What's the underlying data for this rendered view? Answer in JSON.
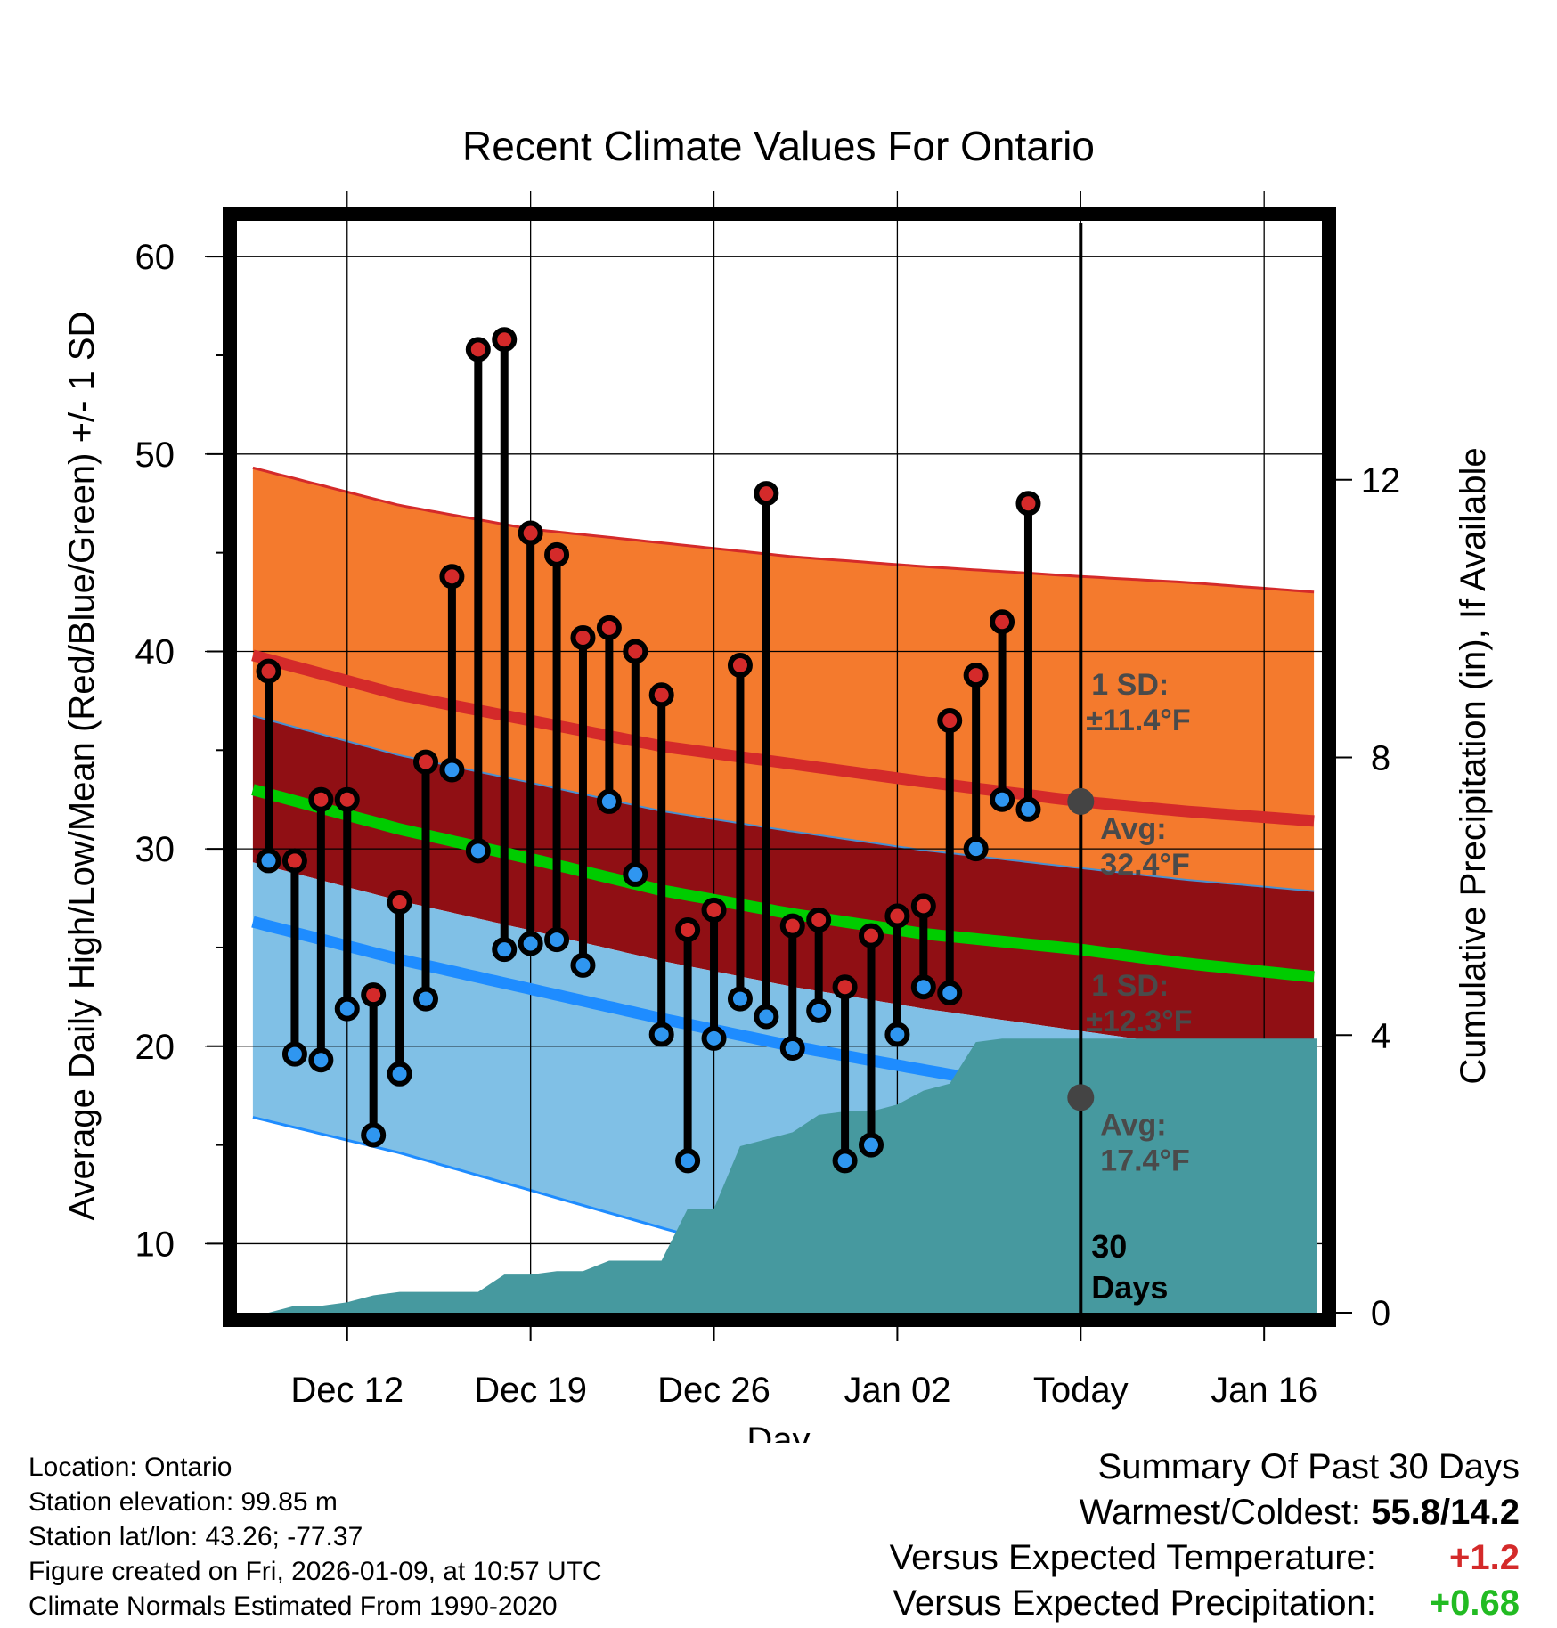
{
  "chart_data": {
    "type": "line",
    "title": "Recent Climate Values For Ontario",
    "xlabel": "Day",
    "ylabel": "Average Daily High/Low/Mean (Red/Blue/Green) +/- 1 SD",
    "y2label": "Cumulative Precipitation (in), If Available",
    "ylim": [
      6.5,
      61
    ],
    "y_ticks": [
      "60",
      "50",
      "40",
      "30",
      "20",
      "10"
    ],
    "y2lim": [
      0,
      15.5
    ],
    "y2_ticks": [
      "12",
      "8",
      "4",
      "0"
    ],
    "xlim": [
      -0.8,
      40
    ],
    "x_ticks": [
      {
        "day": 3,
        "label": "Dec 12"
      },
      {
        "day": 10,
        "label": "Dec 19"
      },
      {
        "day": 17,
        "label": "Dec 26"
      },
      {
        "day": 24,
        "label": "Jan 02"
      },
      {
        "day": 31,
        "label": "Today"
      },
      {
        "day": 38,
        "label": "Jan 16"
      }
    ],
    "normals": {
      "days": [
        -0.6,
        5,
        10,
        15,
        20,
        25,
        31,
        35,
        40
      ],
      "high_mean": [
        39.8,
        37.8,
        36.5,
        35.2,
        34.3,
        33.4,
        32.4,
        31.9,
        31.4
      ],
      "high_upper": [
        49.3,
        47.4,
        46.2,
        45.5,
        44.8,
        44.3,
        43.8,
        43.5,
        43.0
      ],
      "mean": [
        33.0,
        31.0,
        29.5,
        27.9,
        26.7,
        25.7,
        24.9,
        24.2,
        23.5
      ],
      "low_mean": [
        26.3,
        24.4,
        22.9,
        21.4,
        20.0,
        18.8,
        17.4,
        16.6,
        15.8
      ],
      "low_lower": [
        16.4,
        14.6,
        12.7,
        10.8,
        9.0,
        7.4,
        5.3,
        4.3,
        3.3
      ]
    },
    "daily_series": [
      {
        "name": "High",
        "color": "#d42a2a",
        "days": [
          0,
          1,
          2,
          3,
          4,
          5,
          6,
          7,
          8,
          9,
          10,
          11,
          12,
          13,
          14,
          15,
          16,
          17,
          18,
          19,
          20,
          21,
          22,
          23,
          24,
          25,
          26,
          27,
          28,
          29
        ],
        "values": [
          39.0,
          29.4,
          32.5,
          32.5,
          22.6,
          27.3,
          34.4,
          43.8,
          55.3,
          55.8,
          46.0,
          44.9,
          40.7,
          41.2,
          40.0,
          37.8,
          25.9,
          26.9,
          39.3,
          48.0,
          26.1,
          26.4,
          23.0,
          25.6,
          26.6,
          27.1,
          36.5,
          38.8,
          41.5,
          47.5
        ]
      },
      {
        "name": "Low",
        "color": "#2f96f0",
        "days": [
          0,
          1,
          2,
          3,
          4,
          5,
          6,
          7,
          8,
          9,
          10,
          11,
          12,
          13,
          14,
          15,
          16,
          17,
          18,
          19,
          20,
          21,
          22,
          23,
          24,
          25,
          26,
          27,
          28,
          29
        ],
        "values": [
          29.4,
          19.6,
          19.3,
          21.9,
          15.5,
          18.6,
          22.4,
          34.0,
          29.9,
          24.9,
          25.2,
          25.4,
          24.1,
          32.4,
          28.7,
          20.6,
          14.2,
          20.4,
          22.4,
          21.5,
          19.9,
          21.8,
          14.2,
          15.0,
          20.6,
          23.0,
          22.7,
          30.0,
          32.5,
          32.0
        ]
      }
    ],
    "cumulative_precip": {
      "days": [
        0,
        1,
        2,
        3,
        4,
        5,
        6,
        7,
        8,
        9,
        10,
        11,
        12,
        13,
        14,
        15,
        16,
        17,
        18,
        19,
        20,
        21,
        22,
        23,
        24,
        25,
        26,
        27,
        28,
        29,
        31,
        40
      ],
      "values": [
        0.0,
        0.1,
        0.1,
        0.15,
        0.25,
        0.3,
        0.3,
        0.3,
        0.3,
        0.55,
        0.55,
        0.6,
        0.6,
        0.75,
        0.75,
        0.75,
        1.5,
        1.5,
        2.4,
        2.5,
        2.6,
        2.85,
        2.9,
        2.9,
        3.0,
        3.2,
        3.3,
        3.9,
        3.95,
        3.95,
        3.95,
        3.95
      ]
    },
    "avg_markers": [
      {
        "label": "Avg:",
        "value_text": "32.4°F",
        "value": 32.4
      },
      {
        "label": "Avg:",
        "value_text": "17.4°F",
        "value": 17.4
      }
    ],
    "sd_annotations": [
      {
        "label": "1 SD:",
        "value_text": "±11.4°F"
      },
      {
        "label": "1 SD:",
        "value_text": "±12.3°F"
      }
    ],
    "days_annotation": [
      "30",
      "Days"
    ],
    "colors": {
      "high_band": "#f47a2d",
      "high_line": "#d42a2a",
      "mid_band": "#900f14",
      "mean_line": "#00cc00",
      "low_band": "#80c0e6",
      "low_line": "#1e8cff",
      "precip_fill": "#46999f",
      "annotation": "#4a4a4a"
    }
  },
  "metadata": {
    "location": "Location: Ontario",
    "elevation": "Station elevation: 99.85 m",
    "latlon": "Station lat/lon: 43.26; -77.37",
    "created": "Figure created on Fri, 2026-01-09, at 10:57 UTC",
    "normals": "Climate Normals Estimated From 1990-2020"
  },
  "summary": {
    "title": "Summary Of Past 30 Days",
    "warmest_coldest_label": "Warmest/Coldest:",
    "warmest_coldest_value": "55.8/14.2",
    "temp_label": "Versus Expected Temperature:",
    "temp_value": "+1.2",
    "temp_color": "#d42a2a",
    "precip_label": "Versus Expected Precipitation:",
    "precip_value": "+0.68",
    "precip_color": "#22bb22"
  }
}
